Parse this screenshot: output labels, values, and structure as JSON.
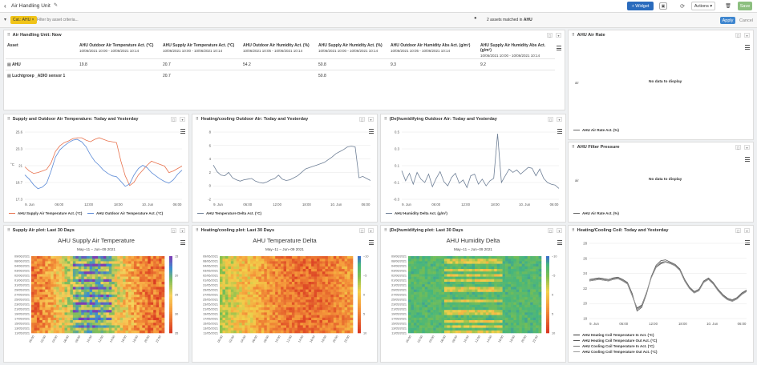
{
  "header": {
    "title": "Air Handling Unit",
    "widget_label": "+ Widget",
    "actions_label": "Actions ▾",
    "save_label": "Save"
  },
  "filter": {
    "chip": "Cat.: AHU",
    "placeholder": "Filter by asset criteria...",
    "matched_prefix": "2 assets matched in ",
    "matched_bold": "AHU",
    "apply": "Apply",
    "cancel": "Cancel"
  },
  "table_panel": {
    "title": "Air Handling Unit: Now",
    "columns": [
      {
        "name": "Asset",
        "range": ""
      },
      {
        "name": "AHU Outdoor Air Temperature Act. (°C)",
        "range": "10/06/2021 10:00 - 10/06/2021 10:14"
      },
      {
        "name": "AHU Supply Air Temperature Act. (°C)",
        "range": "10/06/2021 10:00 - 10/06/2021 10:14"
      },
      {
        "name": "AHU Outdoor Air Humidity Act. (%)",
        "range": "10/06/2021 10:05 - 10/06/2021 10:14"
      },
      {
        "name": "AHU Supply Air Humidity Act. (%)",
        "range": "10/06/2021 10:00 - 10/06/2021 10:14"
      },
      {
        "name": "AHU Outdoor Air Humidity Abs Act. (g/m³)",
        "range": "10/06/2021 10:05 - 10/06/2021 10:14"
      },
      {
        "name": "AHU Supply Air Humidity Abs Act. (g/m³)",
        "range": "10/06/2021 10:00 - 10/06/2021 10:14"
      }
    ],
    "rows": [
      {
        "asset": "AHU",
        "values": [
          "19.8",
          "20.7",
          "54.2",
          "50.8",
          "9.3",
          "9.2"
        ]
      },
      {
        "asset": "Luchtgroep _ADIO sensor 1",
        "values": [
          "",
          "20.7",
          "",
          "50.8",
          "",
          ""
        ]
      }
    ]
  },
  "air_rate": {
    "title": "AHU Air Rate",
    "no_data": "No data to display",
    "legend": "AHU Air Rate Act. (%)",
    "tick_label": "air"
  },
  "filter_pressure": {
    "title": "AHU Filter Pressure",
    "no_data": "No data to display",
    "legend": "AHU Air Rate Act. (%)",
    "tick_label": "air"
  },
  "line_supply": {
    "title": "Supply and Outdoor Air Temperature: Today and Yesterday",
    "legend": [
      "AHU Supply Air Temperature Act. (°C)",
      "AHU Outdoor Air Temperature Act. (°C)"
    ]
  },
  "line_heating": {
    "title": "Heating/cooling Outdoor Air: Today and Yesterday",
    "legend": [
      "AHU Temperature Delta Act. (°C)"
    ]
  },
  "line_dehum": {
    "title": "(De)humidifying Outdoor Air: Today and Yesterday",
    "legend": [
      "AHU Humidity Delta Act. (g/m³)"
    ]
  },
  "hm_supply": {
    "title": "Supply Air plot: Last 30 Days",
    "chart_title": "AHU Supply Air Temperature",
    "subtitle": "May−11 – Jun−09 2021"
  },
  "hm_heating": {
    "title": "Heating/cooling plot: Last 30 Days",
    "chart_title": "AHU Temperature Delta",
    "subtitle": "May−11 – Jun−09 2021"
  },
  "hm_dehum": {
    "title": "(De)humidifying plot: Last 30 Days",
    "chart_title": "AHU Humidity Delta",
    "subtitle": "May−11 – Jun−09 2021"
  },
  "line_coil": {
    "title": "Heating/Cooling Coil: Today and Yesterday",
    "legend": [
      "AHU Heating Coil Temperature In Act. (°C)",
      "AHU Heating Coil Temperature Out Act. (°C)",
      "AHU Cooling Coil Temperature In Act. (°C)",
      "AHU Cooling Coil Temperature Out Act. (°C)"
    ]
  },
  "chart_data": [
    {
      "type": "line",
      "title": "Supply and Outdoor Air Temperature: Today and Yesterday",
      "ylabel": "°C",
      "ylim": [
        17.3,
        25.6
      ],
      "yticks": [
        "25.6",
        "23.3",
        "21",
        "18.7",
        "17.3"
      ],
      "xticks": [
        "9. Jun",
        "06:00",
        "12:00",
        "18:00",
        "10. Jun",
        "06:00"
      ],
      "colors": [
        "#e8734f",
        "#5b8ad6"
      ],
      "series": [
        {
          "name": "AHU Supply Air Temperature Act. (°C)",
          "values": [
            21.3,
            20.8,
            20.5,
            20.6,
            20.8,
            21.0,
            21.8,
            23.2,
            23.9,
            24.3,
            24.5,
            24.8,
            24.9,
            24.9,
            24.6,
            24.4,
            24.7,
            24.9,
            24.7,
            24.5,
            24.4,
            24.3,
            22.0,
            20.2,
            19.0,
            19.4,
            20.3,
            20.9,
            21.5,
            22.0,
            21.8,
            21.6,
            21.4,
            20.6,
            20.8,
            21.1,
            21.4
          ]
        },
        {
          "name": "AHU Outdoor Air Temperature Act. (°C)",
          "values": [
            20.3,
            19.8,
            19.1,
            18.6,
            18.8,
            19.3,
            20.8,
            22.5,
            23.4,
            23.9,
            24.3,
            24.6,
            24.7,
            24.4,
            23.8,
            22.8,
            22.0,
            21.5,
            20.9,
            20.5,
            20.2,
            20.1,
            19.5,
            18.9,
            19.2,
            20.3,
            21.1,
            21.5,
            21.2,
            20.6,
            20.2,
            19.8,
            19.5,
            19.3,
            19.7,
            20.4,
            20.9
          ]
        }
      ]
    },
    {
      "type": "line",
      "title": "Heating/cooling Outdoor Air: Today and Yesterday",
      "ylim": [
        -2,
        8
      ],
      "yticks": [
        "8",
        "6",
        "4",
        "2",
        "0",
        "-2"
      ],
      "xticks": [
        "9. Jun",
        "06:00",
        "12:00",
        "18:00",
        "10. Jun",
        "06:00"
      ],
      "colors": [
        "#6e7f96"
      ],
      "series": [
        {
          "name": "AHU Temperature Delta Act. (°C)",
          "values": [
            3.1,
            2.1,
            1.6,
            1.5,
            2.0,
            1.2,
            0.9,
            0.7,
            0.9,
            1.0,
            1.1,
            0.7,
            0.5,
            0.4,
            0.6,
            0.9,
            1.1,
            1.6,
            1.0,
            0.8,
            0.9,
            1.2,
            1.5,
            2.0,
            2.5,
            2.7,
            2.9,
            3.1,
            3.3,
            3.5,
            3.9,
            4.3,
            4.8,
            5.1,
            5.4,
            5.8,
            5.9,
            5.8,
            1.2,
            1.4,
            1.1,
            0.8
          ]
        }
      ]
    },
    {
      "type": "line",
      "title": "(De)humidifying Outdoor Air: Today and Yesterday",
      "ylim": [
        -0.3,
        0.5
      ],
      "yticks": [
        "0.5",
        "0.3",
        "0.1",
        "-0.1",
        "-0.3"
      ],
      "xticks": [
        "9. Jun",
        "06:00",
        "12:00",
        "18:00",
        "10. Jun",
        "06:00"
      ],
      "colors": [
        "#6e7f96"
      ],
      "series": [
        {
          "name": "AHU Humidity Delta Act. (g/m³)",
          "values": [
            0.04,
            -0.08,
            0.01,
            -0.12,
            0.02,
            -0.06,
            -0.1,
            0.0,
            -0.15,
            -0.05,
            0.03,
            -0.09,
            -0.14,
            -0.04,
            0.01,
            -0.11,
            -0.07,
            -0.16,
            -0.02,
            0.0,
            -0.12,
            -0.06,
            -0.14,
            -0.08,
            -0.05,
            0.48,
            -0.1,
            -0.02,
            0.06,
            0.02,
            0.05,
            0.0,
            0.04,
            0.08,
            0.07,
            -0.02,
            0.06,
            -0.05,
            -0.1,
            -0.12,
            -0.13,
            -0.17
          ]
        }
      ]
    },
    {
      "type": "heatmap",
      "title": "AHU Supply Air Temperature",
      "ylabels": [
        "09/06/2021",
        "08/06/2021",
        "04/06/2021",
        "03/06/2021",
        "02/06/2021",
        "01/06/2021",
        "31/05/2021",
        "29/05/2021",
        "27/05/2021",
        "25/05/2021",
        "23/05/2021",
        "21/05/2021",
        "19/05/2021",
        "17/05/2021",
        "15/05/2021",
        "13/05/2021",
        "11/05/2021"
      ],
      "xlabels": [
        "00:00",
        "02:00",
        "04:00",
        "06:00",
        "08:00",
        "10:00",
        "12:00",
        "14:00",
        "16:00",
        "18:00",
        "20:00",
        "22:00"
      ],
      "scale": [
        "15",
        "20",
        "25",
        "30",
        "35"
      ]
    },
    {
      "type": "heatmap",
      "title": "AHU Temperature Delta",
      "ylabels": [
        "09/06/2021",
        "08/06/2021",
        "04/06/2021",
        "03/06/2021",
        "02/06/2021",
        "01/06/2021",
        "31/05/2021",
        "29/05/2021",
        "27/05/2021",
        "25/05/2021",
        "23/05/2021",
        "21/05/2021",
        "19/05/2021",
        "17/05/2021",
        "15/05/2021",
        "13/05/2021",
        "11/05/2021"
      ],
      "xlabels": [
        "00:00",
        "02:00",
        "04:00",
        "06:00",
        "08:00",
        "10:00",
        "12:00",
        "14:00",
        "16:00",
        "18:00",
        "20:00",
        "22:00"
      ],
      "scale": [
        "−10",
        "−5",
        "0",
        "5",
        "10"
      ]
    },
    {
      "type": "heatmap",
      "title": "AHU Humidity Delta",
      "ylabels": [
        "09/06/2021",
        "08/06/2021",
        "04/06/2021",
        "03/06/2021",
        "02/06/2021",
        "01/06/2021",
        "31/05/2021",
        "29/05/2021",
        "27/05/2021",
        "25/05/2021",
        "23/05/2021",
        "21/05/2021",
        "19/05/2021",
        "17/05/2021",
        "15/05/2021",
        "13/05/2021",
        "11/05/2021"
      ],
      "xlabels": [
        "00:00",
        "02:00",
        "04:00",
        "06:00",
        "08:00",
        "10:00",
        "12:00",
        "14:00",
        "16:00",
        "18:00",
        "20:00",
        "22:00"
      ],
      "scale": [
        "−10",
        "−5",
        "0",
        "5",
        "10"
      ]
    },
    {
      "type": "line",
      "title": "Heating/Cooling Coil: Today and Yesterday",
      "ylim": [
        18,
        28
      ],
      "yticks": [
        "28",
        "26",
        "24",
        "22",
        "20",
        "18"
      ],
      "xticks": [
        "9. Jun",
        "06:00",
        "12:00",
        "18:00",
        "10. Jun",
        "06:00"
      ],
      "colors": [
        "#333333",
        "#555555",
        "#777777",
        "#999999"
      ],
      "series": [
        {
          "name": "AHU Heating Coil Temperature In Act. (°C)",
          "values": [
            23.0,
            23.1,
            23.2,
            23.1,
            23.0,
            23.2,
            23.3,
            23.0,
            22.6,
            21.0,
            19.4,
            19.8,
            21.5,
            23.5,
            24.8,
            25.3,
            25.5,
            25.3,
            25.0,
            24.4,
            23.0,
            22.0,
            21.4,
            21.7,
            22.8,
            23.2,
            22.6,
            21.7,
            21.0,
            20.5,
            20.3,
            20.6,
            21.2,
            21.6
          ]
        },
        {
          "name": "AHU Heating Coil Temperature Out Act. (°C)",
          "values": [
            23.2,
            23.3,
            23.4,
            23.3,
            23.2,
            23.4,
            23.5,
            23.2,
            22.8,
            21.3,
            19.0,
            19.5,
            21.3,
            23.6,
            25.1,
            25.7,
            25.8,
            25.5,
            25.2,
            24.6,
            23.2,
            22.2,
            21.6,
            21.9,
            23.0,
            23.4,
            22.8,
            21.9,
            21.2,
            20.7,
            20.5,
            20.8,
            21.4,
            21.8
          ]
        },
        {
          "name": "AHU Cooling Coil Temperature In Act. (°C)",
          "values": [
            23.1,
            23.2,
            23.3,
            23.2,
            23.1,
            23.3,
            23.4,
            23.1,
            22.7,
            21.1,
            19.2,
            19.6,
            21.4,
            23.5,
            24.9,
            25.5,
            25.6,
            25.4,
            25.1,
            24.5,
            23.1,
            22.1,
            21.5,
            21.8,
            22.9,
            23.3,
            22.7,
            21.8,
            21.1,
            20.6,
            20.4,
            20.7,
            21.3,
            21.7
          ]
        },
        {
          "name": "AHU Cooling Coil Temperature Out Act. (°C)",
          "values": [
            23.0,
            23.1,
            23.2,
            23.1,
            23.0,
            23.2,
            23.3,
            23.0,
            22.6,
            21.0,
            19.3,
            19.7,
            21.5,
            23.4,
            24.8,
            25.4,
            25.5,
            25.3,
            25.0,
            24.4,
            23.0,
            22.0,
            21.4,
            21.7,
            22.8,
            23.2,
            22.6,
            21.7,
            21.0,
            20.5,
            20.3,
            20.6,
            21.2,
            21.6
          ]
        }
      ]
    }
  ]
}
